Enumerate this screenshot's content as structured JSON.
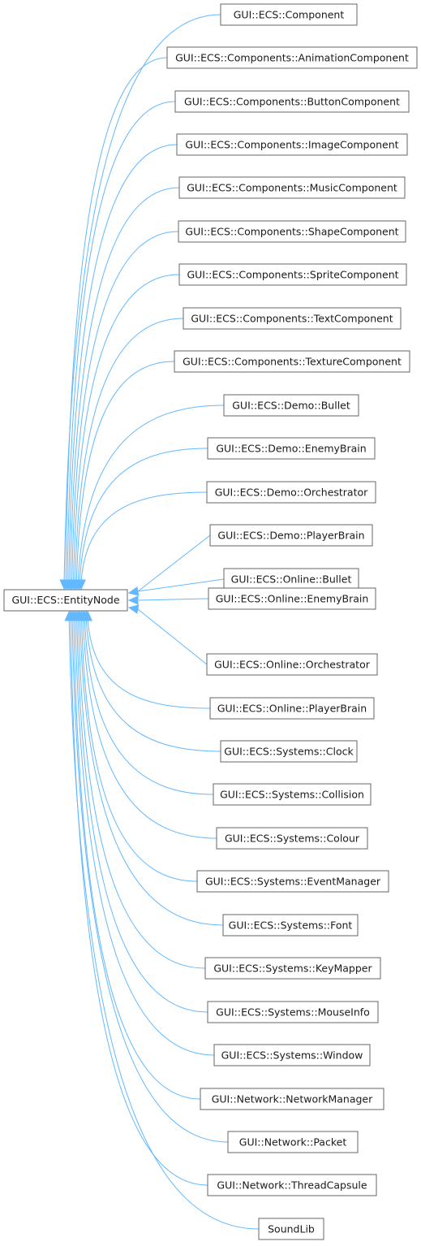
{
  "colors": {
    "edge": "#63b8ff",
    "border": "#666666",
    "text": "#1a1a1a",
    "background": "#ffffff"
  },
  "base": {
    "label": "GUI::ECS::EntityNode"
  },
  "derived": [
    "GUI::ECS::Component",
    "GUI::ECS::Components::AnimationComponent",
    "GUI::ECS::Components::ButtonComponent",
    "GUI::ECS::Components::ImageComponent",
    "GUI::ECS::Components::MusicComponent",
    "GUI::ECS::Components::ShapeComponent",
    "GUI::ECS::Components::SpriteComponent",
    "GUI::ECS::Components::TextComponent",
    "GUI::ECS::Components::TextureComponent",
    "GUI::ECS::Demo::Bullet",
    "GUI::ECS::Demo::EnemyBrain",
    "GUI::ECS::Demo::Orchestrator",
    "GUI::ECS::Demo::PlayerBrain",
    "GUI::ECS::Online::Bullet",
    "GUI::ECS::Online::EnemyBrain",
    "GUI::ECS::Online::Orchestrator",
    "GUI::ECS::Online::PlayerBrain",
    "GUI::ECS::Systems::Clock",
    "GUI::ECS::Systems::Collision",
    "GUI::ECS::Systems::Colour",
    "GUI::ECS::Systems::EventManager",
    "GUI::ECS::Systems::Font",
    "GUI::ECS::Systems::KeyMapper",
    "GUI::ECS::Systems::MouseInfo",
    "GUI::ECS::Systems::Window",
    "GUI::Network::NetworkManager",
    "GUI::Network::Packet",
    "GUI::Network::ThreadCapsule",
    "SoundLib"
  ]
}
